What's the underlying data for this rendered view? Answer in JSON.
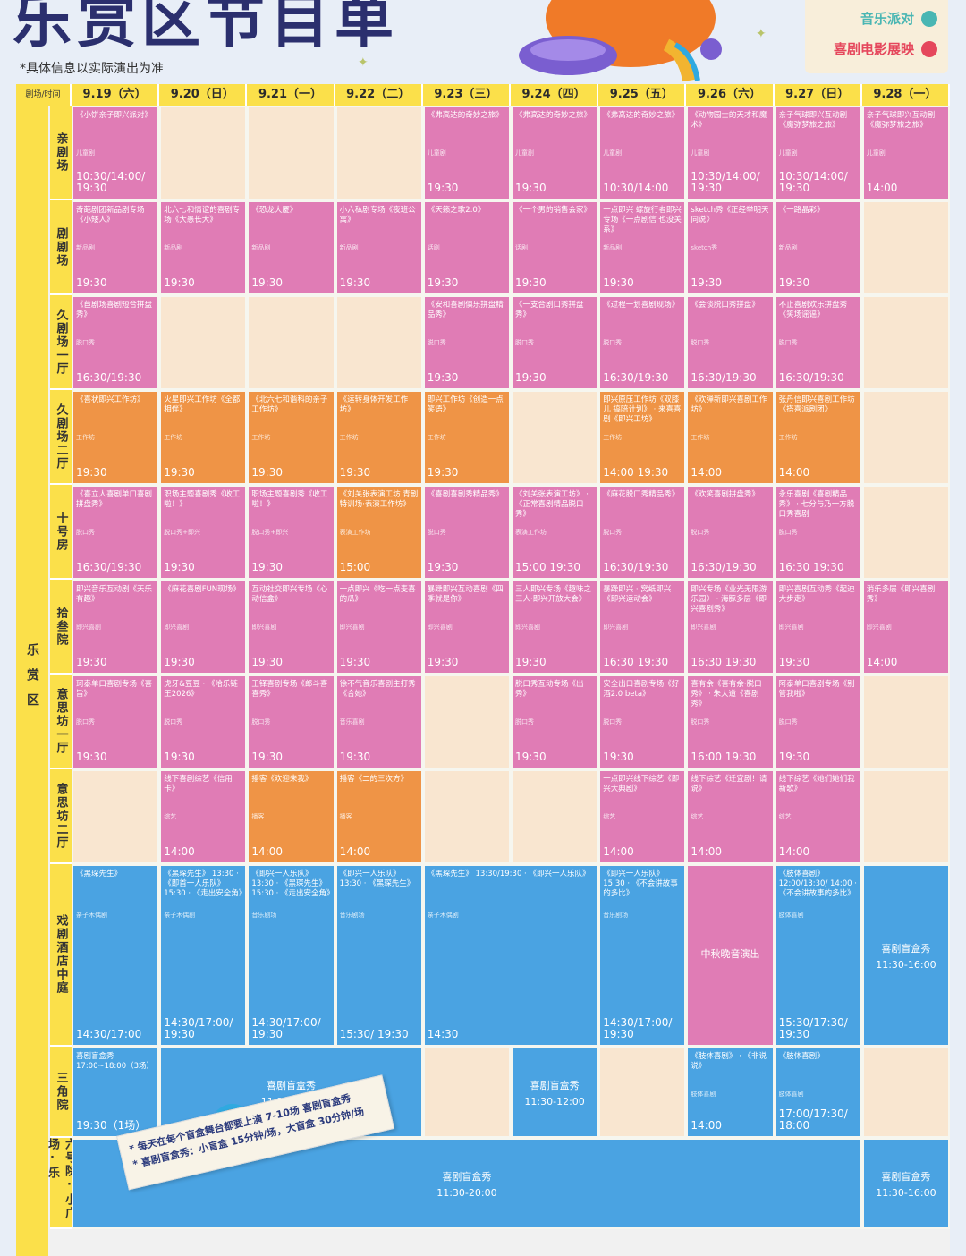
{
  "header": {
    "title": "乐赏区节目单",
    "note": "*具体信息以实际演出为准",
    "legend": [
      {
        "label": "音乐派对",
        "color": "#49b6b3"
      },
      {
        "label": "喜剧电影展映",
        "color": "#e5475c"
      }
    ]
  },
  "table": {
    "corner": "剧场/时间",
    "category": "乐赏区",
    "dates": [
      {
        "label": "9.19（六）"
      },
      {
        "label": "9.20（日）"
      },
      {
        "label": "9.21（一）"
      },
      {
        "label": "9.22（二）"
      },
      {
        "label": "9.23（三）"
      },
      {
        "label": "9.24（四）"
      },
      {
        "label": "9.25（五）"
      },
      {
        "label": "9.26（六）"
      },
      {
        "label": "9.27（日）"
      },
      {
        "label": "9.28（一）"
      }
    ],
    "venues": [
      {
        "name": "亲剧场"
      },
      {
        "name": "剧剧场"
      },
      {
        "name": "久剧场一厅"
      },
      {
        "name": "久剧场二厅"
      },
      {
        "name": "十号房"
      },
      {
        "name": "拾叁院"
      },
      {
        "name": "意思坊一厅"
      },
      {
        "name": "意思坊二厅"
      },
      {
        "name": "戏剧酒店中庭"
      },
      {
        "name": "三角院"
      },
      {
        "name": "六号院·小广场·乐"
      }
    ],
    "cells": [
      {
        "r": 0,
        "c": 0,
        "cs": 1,
        "color": "pink",
        "name": "《小饼亲子即兴派对》",
        "sub": "儿童剧",
        "time": "10:30/14:00/ 19:30"
      },
      {
        "r": 0,
        "c": 1,
        "cs": 1,
        "color": "cream",
        "name": "",
        "sub": "",
        "time": ""
      },
      {
        "r": 0,
        "c": 2,
        "cs": 1,
        "color": "cream",
        "name": "",
        "sub": "",
        "time": ""
      },
      {
        "r": 0,
        "c": 3,
        "cs": 1,
        "color": "cream",
        "name": "",
        "sub": "",
        "time": ""
      },
      {
        "r": 0,
        "c": 4,
        "cs": 1,
        "color": "pink",
        "name": "《弗高达的奇妙之旅》",
        "sub": "儿童剧",
        "time": "19:30"
      },
      {
        "r": 0,
        "c": 5,
        "cs": 1,
        "color": "pink",
        "name": "《弗高达的奇妙之旅》",
        "sub": "儿童剧",
        "time": "19:30"
      },
      {
        "r": 0,
        "c": 6,
        "cs": 1,
        "color": "pink",
        "name": "《弗高达的奇妙之旅》",
        "sub": "儿童剧",
        "time": "10:30/14:00"
      },
      {
        "r": 0,
        "c": 7,
        "cs": 1,
        "color": "pink",
        "name": "《动物园士的天才和魔术》",
        "sub": "儿童剧",
        "time": "10:30/14:00/ 19:30"
      },
      {
        "r": 0,
        "c": 8,
        "cs": 1,
        "color": "pink",
        "name": "亲子气球即兴互动剧《魔弥梦旅之旅》",
        "sub": "儿童剧",
        "time": "10:30/14:00/ 19:30"
      },
      {
        "r": 0,
        "c": 9,
        "cs": 1,
        "color": "pink",
        "name": "亲子气球即兴互动剧《魔弥梦旅之旅》",
        "sub": "儿童剧",
        "time": "14:00"
      },
      {
        "r": 1,
        "c": 0,
        "cs": 1,
        "color": "pink",
        "name": "奇葩剧团新品剧专场《小矮人》",
        "sub": "新品剧",
        "time": "19:30"
      },
      {
        "r": 1,
        "c": 1,
        "cs": 1,
        "color": "pink",
        "name": "北六七和情谊的喜剧专场《大愚长大》",
        "sub": "新品剧",
        "time": "19:30"
      },
      {
        "r": 1,
        "c": 2,
        "cs": 1,
        "color": "pink",
        "name": "《恐龙大厦》",
        "sub": "新品剧",
        "time": "19:30"
      },
      {
        "r": 1,
        "c": 3,
        "cs": 1,
        "color": "pink",
        "name": "小六私剧专场《夜班公寓》",
        "sub": "新品剧",
        "time": "19:30"
      },
      {
        "r": 1,
        "c": 4,
        "cs": 1,
        "color": "pink",
        "name": "《天籁之歌2.0》",
        "sub": "话剧",
        "time": "19:30"
      },
      {
        "r": 1,
        "c": 5,
        "cs": 1,
        "color": "pink",
        "name": "《一个男的销售会家》",
        "sub": "话剧",
        "time": "19:30"
      },
      {
        "r": 1,
        "c": 6,
        "cs": 1,
        "color": "pink",
        "name": "一点即兴 螺旋行者即兴专场《一点剧信 也没关系》",
        "sub": "新品剧",
        "time": "19:30"
      },
      {
        "r": 1,
        "c": 7,
        "cs": 1,
        "color": "pink",
        "name": "sketch秀《正经举明天同说》",
        "sub": "sketch秀",
        "time": "19:30"
      },
      {
        "r": 1,
        "c": 8,
        "cs": 1,
        "color": "pink",
        "name": "《一路晶彩》",
        "sub": "新品剧",
        "time": "19:30"
      },
      {
        "r": 1,
        "c": 9,
        "cs": 1,
        "color": "cream",
        "name": "",
        "sub": "",
        "time": ""
      },
      {
        "r": 2,
        "c": 0,
        "cs": 1,
        "color": "pink",
        "name": "《苣剧场喜剧短合拼盘秀》",
        "sub": "脱口秀",
        "time": "16:30/19:30"
      },
      {
        "r": 2,
        "c": 1,
        "cs": 1,
        "color": "cream",
        "name": "",
        "sub": "",
        "time": ""
      },
      {
        "r": 2,
        "c": 2,
        "cs": 1,
        "color": "cream",
        "name": "",
        "sub": "",
        "time": ""
      },
      {
        "r": 2,
        "c": 3,
        "cs": 1,
        "color": "cream",
        "name": "",
        "sub": "",
        "time": ""
      },
      {
        "r": 2,
        "c": 4,
        "cs": 1,
        "color": "pink",
        "name": "《安和喜剧俱乐拼盘精品秀》",
        "sub": "脱口秀",
        "time": "19:30"
      },
      {
        "r": 2,
        "c": 5,
        "cs": 1,
        "color": "pink",
        "name": "《一支合剧口秀拼盘秀》",
        "sub": "脱口秀",
        "time": "19:30"
      },
      {
        "r": 2,
        "c": 6,
        "cs": 1,
        "color": "pink",
        "name": "《过程一划喜剧现场》",
        "sub": "脱口秀",
        "time": "16:30/19:30"
      },
      {
        "r": 2,
        "c": 7,
        "cs": 1,
        "color": "pink",
        "name": "《会谈脱口秀拼盘》",
        "sub": "脱口秀",
        "time": "16:30/19:30"
      },
      {
        "r": 2,
        "c": 8,
        "cs": 1,
        "color": "pink",
        "name": "不止喜剧欢乐拼盘秀《笑场谣谣》",
        "sub": "脱口秀",
        "time": "16:30/19:30"
      },
      {
        "r": 2,
        "c": 9,
        "cs": 1,
        "color": "cream",
        "name": "",
        "sub": "",
        "time": ""
      },
      {
        "r": 3,
        "c": 0,
        "cs": 1,
        "color": "orange",
        "name": "《喜状即兴工作坊》",
        "sub": "工作坊",
        "time": "19:30"
      },
      {
        "r": 3,
        "c": 1,
        "cs": 1,
        "color": "orange",
        "name": "火星即兴工作坊《全都相伴》",
        "sub": "工作坊",
        "time": "19:30"
      },
      {
        "r": 3,
        "c": 2,
        "cs": 1,
        "color": "orange",
        "name": "《北六七和谐科的亲子工作坊》",
        "sub": "工作坊",
        "time": "19:30"
      },
      {
        "r": 3,
        "c": 3,
        "cs": 1,
        "color": "orange",
        "name": "《运转身体开发工作坊》",
        "sub": "工作坊",
        "time": "19:30"
      },
      {
        "r": 3,
        "c": 4,
        "cs": 1,
        "color": "orange",
        "name": "即兴工作坊《创造一点笑语》",
        "sub": "工作坊",
        "time": "19:30"
      },
      {
        "r": 3,
        "c": 5,
        "cs": 1,
        "color": "cream",
        "name": "",
        "sub": "",
        "time": ""
      },
      {
        "r": 3,
        "c": 6,
        "cs": 1,
        "color": "orange",
        "name": "即兴原压工作坊《双膝儿 搞陪计划》 · 来喜喜剧《即兴工坊》",
        "sub": "工作坊",
        "time": "14:00  19:30"
      },
      {
        "r": 3,
        "c": 7,
        "cs": 1,
        "color": "orange",
        "name": "《欢弹新即兴喜剧工作坊》",
        "sub": "工作坊",
        "time": "14:00"
      },
      {
        "r": 3,
        "c": 8,
        "cs": 1,
        "color": "orange",
        "name": "张丹信即兴喜剧工作坊《搭喜派剧团》",
        "sub": "工作坊",
        "time": "14:00"
      },
      {
        "r": 3,
        "c": 9,
        "cs": 1,
        "color": "cream",
        "name": "",
        "sub": "",
        "time": ""
      },
      {
        "r": 4,
        "c": 0,
        "cs": 1,
        "color": "pink",
        "name": "《喜立人喜剧单口喜剧拼盘秀》",
        "sub": "脱口秀",
        "time": "16:30/19:30"
      },
      {
        "r": 4,
        "c": 1,
        "cs": 1,
        "color": "pink",
        "name": "职场主题喜剧秀《收工啦！》",
        "sub": "脱口秀+即兴",
        "time": "19:30"
      },
      {
        "r": 4,
        "c": 2,
        "cs": 1,
        "color": "pink",
        "name": "职场主题喜剧秀《收工啦！》",
        "sub": "脱口秀+即兴",
        "time": "19:30"
      },
      {
        "r": 4,
        "c": 3,
        "cs": 1,
        "color": "orange",
        "name": "《刘关张表演工坊 青剧特训场·表演工作坊》",
        "sub": "表演工作坊",
        "time": "15:00"
      },
      {
        "r": 4,
        "c": 4,
        "cs": 1,
        "color": "pink",
        "name": "《喜剧喜剧秀精品秀》",
        "sub": "脱口秀",
        "time": "19:30"
      },
      {
        "r": 4,
        "c": 5,
        "cs": 1,
        "color": "pink",
        "name": "《刘关张表演工坊》 · 《正常喜剧精品脱口秀》",
        "sub": "表演工作坊",
        "time": "15:00  19:30"
      },
      {
        "r": 4,
        "c": 6,
        "cs": 1,
        "color": "pink",
        "name": "《麻花脱口秀精品秀》",
        "sub": "脱口秀",
        "time": "16:30/19:30"
      },
      {
        "r": 4,
        "c": 7,
        "cs": 1,
        "color": "pink",
        "name": "《欢笑喜剧拼盘秀》",
        "sub": "脱口秀",
        "time": "16:30/19:30"
      },
      {
        "r": 4,
        "c": 8,
        "cs": 1,
        "color": "pink",
        "name": "永乐喜剧《喜剧精品秀》 · 七分与乃一方脱口秀喜剧",
        "sub": "脱口秀",
        "time": "16:30  19:30"
      },
      {
        "r": 4,
        "c": 9,
        "cs": 1,
        "color": "cream",
        "name": "",
        "sub": "",
        "time": ""
      },
      {
        "r": 5,
        "c": 0,
        "cs": 1,
        "color": "pink",
        "name": "即兴音乐互动剧《天乐有趣》",
        "sub": "即兴喜剧",
        "time": "19:30"
      },
      {
        "r": 5,
        "c": 1,
        "cs": 1,
        "color": "pink",
        "name": "《麻花喜剧FUN现场》",
        "sub": "即兴喜剧",
        "time": "19:30"
      },
      {
        "r": 5,
        "c": 2,
        "cs": 1,
        "color": "pink",
        "name": "互动社交即兴专场《心动信盒》",
        "sub": "即兴喜剧",
        "time": "19:30"
      },
      {
        "r": 5,
        "c": 3,
        "cs": 1,
        "color": "pink",
        "name": "一点即兴《吃一点麦喜的瓜》",
        "sub": "即兴喜剧",
        "time": "19:30"
      },
      {
        "r": 5,
        "c": 4,
        "cs": 1,
        "color": "pink",
        "name": "暴躁即兴互动喜剧《四季就是你》",
        "sub": "即兴喜剧",
        "time": "19:30"
      },
      {
        "r": 5,
        "c": 5,
        "cs": 1,
        "color": "pink",
        "name": "三人即兴专场《趣味之三人·即兴开放大会》",
        "sub": "即兴喜剧",
        "time": "19:30"
      },
      {
        "r": 5,
        "c": 6,
        "cs": 1,
        "color": "pink",
        "name": "暴躁即兴 · 窝纸即兴《即兴运动会》",
        "sub": "即兴喜剧",
        "time": "16:30  19:30"
      },
      {
        "r": 5,
        "c": 7,
        "cs": 1,
        "color": "pink",
        "name": "即兴专场《业光无限游乐园》 · 海豚多层《即兴喜剧秀》",
        "sub": "即兴喜剧",
        "time": "16:30  19:30"
      },
      {
        "r": 5,
        "c": 8,
        "cs": 1,
        "color": "pink",
        "name": "即兴喜剧互动秀《起迪大步走》",
        "sub": "即兴喜剧",
        "time": "19:30"
      },
      {
        "r": 5,
        "c": 9,
        "cs": 1,
        "color": "pink",
        "name": "消乐多层《即兴喜剧秀》",
        "sub": "即兴喜剧",
        "time": "14:00"
      },
      {
        "r": 6,
        "c": 0,
        "cs": 1,
        "color": "pink",
        "name": "珂泰单口喜剧专场《喜旨》",
        "sub": "脱口秀",
        "time": "19:30"
      },
      {
        "r": 6,
        "c": 1,
        "cs": 1,
        "color": "pink",
        "name": "虎牙&豆豆 · 《哈乐链王2026》",
        "sub": "脱口秀",
        "time": "19:30"
      },
      {
        "r": 6,
        "c": 2,
        "cs": 1,
        "color": "pink",
        "name": "王铎喜剧专场《郎斗喜喜秀》",
        "sub": "脱口秀",
        "time": "19:30"
      },
      {
        "r": 6,
        "c": 3,
        "cs": 1,
        "color": "pink",
        "name": "徐不气音乐喜剧主打秀《合她》",
        "sub": "音乐喜剧",
        "time": "19:30"
      },
      {
        "r": 6,
        "c": 4,
        "cs": 1,
        "color": "cream",
        "name": "",
        "sub": "",
        "time": ""
      },
      {
        "r": 6,
        "c": 5,
        "cs": 1,
        "color": "pink",
        "name": "脱口秀互动专场《出秀》",
        "sub": "脱口秀",
        "time": "19:30"
      },
      {
        "r": 6,
        "c": 6,
        "cs": 1,
        "color": "pink",
        "name": "安全出口喜剧专场《好酒2.0 beta》",
        "sub": "脱口秀",
        "time": "19:30"
      },
      {
        "r": 6,
        "c": 7,
        "cs": 1,
        "color": "pink",
        "name": "喜有余《喜有余·脱口秀》 · 朱大道《喜剧秀》",
        "sub": "脱口秀",
        "time": "16:00  19:30"
      },
      {
        "r": 6,
        "c": 8,
        "cs": 1,
        "color": "pink",
        "name": "阿泰单口喜剧专场《别管我啦》",
        "sub": "脱口秀",
        "time": "19:30"
      },
      {
        "r": 6,
        "c": 9,
        "cs": 1,
        "color": "cream",
        "name": "",
        "sub": "",
        "time": ""
      },
      {
        "r": 7,
        "c": 0,
        "cs": 1,
        "color": "cream",
        "name": "",
        "sub": "",
        "time": ""
      },
      {
        "r": 7,
        "c": 1,
        "cs": 1,
        "color": "pink",
        "name": "线下喜剧综艺《信用卡》",
        "sub": "综艺",
        "time": "14:00"
      },
      {
        "r": 7,
        "c": 2,
        "cs": 1,
        "color": "orange",
        "name": "播客《欢迎来我》",
        "sub": "播客",
        "time": "14:00"
      },
      {
        "r": 7,
        "c": 3,
        "cs": 1,
        "color": "orange",
        "name": "播客《二的三次方》",
        "sub": "播客",
        "time": "14:00"
      },
      {
        "r": 7,
        "c": 4,
        "cs": 1,
        "color": "cream",
        "name": "",
        "sub": "",
        "time": ""
      },
      {
        "r": 7,
        "c": 5,
        "cs": 1,
        "color": "cream",
        "name": "",
        "sub": "",
        "time": ""
      },
      {
        "r": 7,
        "c": 6,
        "cs": 1,
        "color": "pink",
        "name": "一点即兴线下综艺《即兴大典剧》",
        "sub": "综艺",
        "time": "14:00"
      },
      {
        "r": 7,
        "c": 7,
        "cs": 1,
        "color": "pink",
        "name": "线下综艺《迁宜剧！请说》",
        "sub": "综艺",
        "time": "14:00"
      },
      {
        "r": 7,
        "c": 8,
        "cs": 1,
        "color": "pink",
        "name": "线下综艺《她们她们我新歌》",
        "sub": "综艺",
        "time": "14:00"
      },
      {
        "r": 7,
        "c": 9,
        "cs": 1,
        "color": "cream",
        "name": "",
        "sub": "",
        "time": ""
      },
      {
        "r": 8,
        "c": 0,
        "cs": 1,
        "color": "blue",
        "name": "《黑琛先生》",
        "sub": "亲子木偶剧",
        "time": "14:30/17:00"
      },
      {
        "r": 8,
        "c": 1,
        "cs": 1,
        "color": "blue",
        "name": "《黑琛先生》 13:30 · 《即首一人乐队》 15:30 · 《走出安全角》",
        "sub": "亲子木偶剧",
        "time": "14:30/17:00/ 19:30"
      },
      {
        "r": 8,
        "c": 2,
        "cs": 1,
        "color": "blue",
        "name": "《即兴一人乐队》 13:30 · 《黑琛先生》 15:30 · 《走出安全角》",
        "sub": "音乐剧场",
        "time": "14:30/17:00/ 19:30"
      },
      {
        "r": 8,
        "c": 3,
        "cs": 1,
        "color": "blue",
        "name": "《即兴一人乐队》 13:30 · 《黑琛先生》",
        "sub": "音乐剧场",
        "time": "15:30/ 19:30"
      },
      {
        "r": 8,
        "c": 4,
        "cs": 2,
        "color": "blue",
        "name": "《黑琛先生》 13:30/19:30 · 《即兴一人乐队》",
        "sub": "亲子木偶剧",
        "time": "14:30"
      },
      {
        "r": 8,
        "c": 6,
        "cs": 1,
        "color": "blue",
        "name": "《即兴一人乐队》 15:30 · 《不会讲故事的多比》",
        "sub": "音乐剧场",
        "time": "14:30/17:00/ 19:30"
      },
      {
        "r": 8,
        "c": 7,
        "cs": 1,
        "color": "pink",
        "name": "中秋晚音演出",
        "sub": "",
        "time": ""
      },
      {
        "r": 8,
        "c": 8,
        "cs": 1,
        "color": "blue",
        "name": "《肢体喜剧》 12:00/13:30/ 14:00 · 《不会讲故事的多比》",
        "sub": "肢体喜剧",
        "time": "15:30/17:30/ 19:30"
      },
      {
        "r": 8,
        "c": 9,
        "cs": 1,
        "color": "blue",
        "name": "喜剧盲盒秀",
        "sub": "",
        "time": "11:30-16:00"
      },
      {
        "r": 9,
        "c": 0,
        "cs": 1,
        "color": "blue",
        "name": "喜剧盲盒秀 17:00~18:00（3场）",
        "sub": "",
        "time": "19:30（1场）"
      },
      {
        "r": 9,
        "c": 1,
        "cs": 3,
        "color": "blue",
        "name": "喜剧盲盒秀",
        "sub": "",
        "time": "11:30-20:00"
      },
      {
        "r": 9,
        "c": 4,
        "cs": 1,
        "color": "cream",
        "name": "",
        "sub": "",
        "time": ""
      },
      {
        "r": 9,
        "c": 5,
        "cs": 1,
        "color": "blue",
        "name": "喜剧盲盒秀",
        "sub": "",
        "time": "11:30-12:00"
      },
      {
        "r": 9,
        "c": 6,
        "cs": 1,
        "color": "cream",
        "name": "",
        "sub": "",
        "time": ""
      },
      {
        "r": 9,
        "c": 7,
        "cs": 1,
        "color": "blue",
        "name": "《肢体喜剧》 · 《非说说》",
        "sub": "肢体喜剧",
        "time": "14:00"
      },
      {
        "r": 9,
        "c": 8,
        "cs": 1,
        "color": "blue",
        "name": "《肢体喜剧》",
        "sub": "肢体喜剧",
        "time": "17:00/17:30/ 18:00"
      },
      {
        "r": 9,
        "c": 9,
        "cs": 1,
        "color": "cream",
        "name": "",
        "sub": "",
        "time": ""
      },
      {
        "r": 10,
        "c": 0,
        "cs": 9,
        "color": "blue",
        "name": "喜剧盲盒秀",
        "sub": "",
        "time": "11:30-20:00"
      },
      {
        "r": 10,
        "c": 9,
        "cs": 1,
        "color": "blue",
        "name": "喜剧盲盒秀",
        "sub": "",
        "time": "11:30-16:00"
      }
    ]
  },
  "banner": {
    "line1": "* 每天在每个盲盒舞台都要上演 7-10场 喜剧盲盒秀",
    "line2": "* 喜剧盲盒秀：小盲盒 15分钟/场，大盲盒 30分钟/场"
  }
}
